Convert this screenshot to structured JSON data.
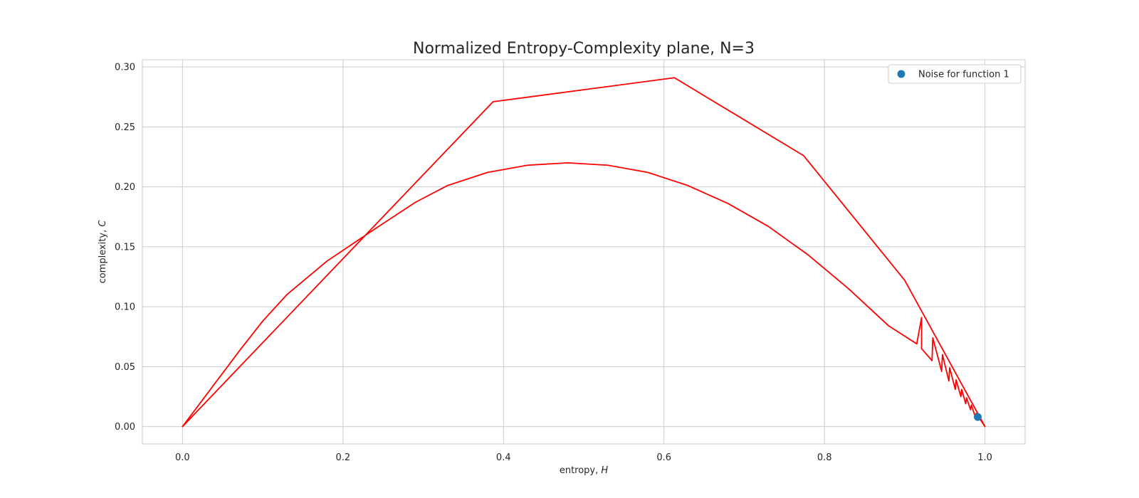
{
  "chart_data": {
    "type": "line",
    "title": "Normalized Entropy-Complexity plane, N=3",
    "xlabel": "entropy, ",
    "xlabel_var": "H",
    "ylabel": "complexity, ",
    "ylabel_var": "C",
    "xlim": [
      -0.05,
      1.05
    ],
    "ylim": [
      -0.0145,
      0.306
    ],
    "xticks": [
      0.0,
      0.2,
      0.4,
      0.6,
      0.8,
      1.0
    ],
    "xtick_labels": [
      "0.0",
      "0.2",
      "0.4",
      "0.6",
      "0.8",
      "1.0"
    ],
    "yticks": [
      0.0,
      0.05,
      0.1,
      0.15,
      0.2,
      0.25,
      0.3
    ],
    "ytick_labels": [
      "0.00",
      "0.05",
      "0.10",
      "0.15",
      "0.20",
      "0.25",
      "0.30"
    ],
    "grid": true,
    "legend_position": "top-right",
    "colors": {
      "curve": "#ff0000",
      "point": "#1f77b4",
      "grid": "#cccccc",
      "spine": "#cccccc"
    },
    "series": [
      {
        "kind": "line",
        "x": [
          0.0,
          0.073,
          0.1,
          0.13,
          0.18,
          0.24,
          0.29,
          0.33,
          0.38,
          0.43,
          0.48,
          0.53,
          0.58,
          0.63,
          0.68,
          0.73,
          0.78,
          0.83,
          0.88,
          0.915,
          0.921,
          0.921,
          0.934,
          0.935,
          0.946,
          0.947,
          0.955,
          0.956,
          0.963,
          0.964,
          0.97,
          0.971,
          0.976,
          0.977,
          0.982,
          0.983,
          0.988,
          0.989,
          1.0
        ],
        "y": [
          0.0,
          0.065,
          0.088,
          0.11,
          0.138,
          0.165,
          0.187,
          0.201,
          0.212,
          0.218,
          0.22,
          0.218,
          0.212,
          0.201,
          0.186,
          0.167,
          0.143,
          0.115,
          0.084,
          0.069,
          0.091,
          0.065,
          0.055,
          0.074,
          0.046,
          0.06,
          0.038,
          0.049,
          0.031,
          0.039,
          0.025,
          0.031,
          0.019,
          0.024,
          0.014,
          0.018,
          0.008,
          0.011,
          0.0
        ]
      },
      {
        "kind": "line",
        "x": [
          0.0,
          0.387,
          0.613,
          0.774,
          0.9,
          1.0
        ],
        "y": [
          0.0,
          0.271,
          0.291,
          0.226,
          0.122,
          0.0
        ]
      },
      {
        "kind": "scatter",
        "name": "Noise for function 1",
        "x": [
          0.991
        ],
        "y": [
          0.008
        ]
      }
    ]
  }
}
